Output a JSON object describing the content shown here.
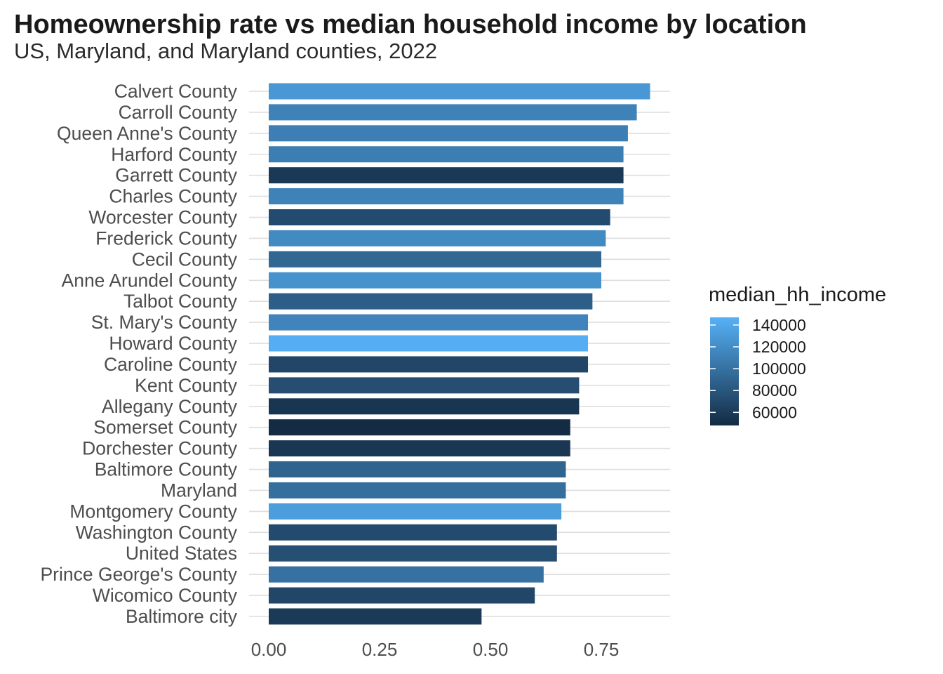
{
  "chart_data": {
    "type": "bar",
    "orientation": "horizontal",
    "title": "Homeownership rate vs median household income by location",
    "subtitle": "US, Maryland, and Maryland counties, 2022",
    "xlabel": "",
    "ylabel": "",
    "xlim": [
      0,
      0.9
    ],
    "x_ticks": [
      "0.00",
      "0.25",
      "0.50",
      "0.75"
    ],
    "x_tick_values": [
      0,
      0.25,
      0.5,
      0.75
    ],
    "grid": true,
    "legend_placement": "right",
    "categories": [
      "Calvert County",
      "Carroll County",
      "Queen Anne's County",
      "Harford County",
      "Garrett County",
      "Charles County",
      "Worcester County",
      "Frederick County",
      "Cecil County",
      "Anne Arundel County",
      "Talbot County",
      "St. Mary's County",
      "Howard County",
      "Caroline County",
      "Kent County",
      "Allegany County",
      "Somerset County",
      "Dorchester County",
      "Baltimore County",
      "Maryland",
      "Montgomery County",
      "Washington County",
      "United States",
      "Prince George's County",
      "Wicomico County",
      "Baltimore city"
    ],
    "values": [
      0.86,
      0.83,
      0.81,
      0.8,
      0.8,
      0.8,
      0.77,
      0.76,
      0.75,
      0.75,
      0.73,
      0.72,
      0.72,
      0.72,
      0.7,
      0.7,
      0.68,
      0.68,
      0.67,
      0.67,
      0.66,
      0.65,
      0.65,
      0.62,
      0.6,
      0.48
    ],
    "fill_values": [
      128000,
      112000,
      110000,
      109000,
      58000,
      112000,
      72000,
      118000,
      92000,
      124000,
      86000,
      114000,
      145000,
      68000,
      74000,
      56000,
      48000,
      57000,
      90000,
      98000,
      132000,
      72000,
      75000,
      100000,
      68000,
      59000
    ],
    "colorbar": {
      "title": "median_hh_income",
      "labels": [
        "140000",
        "120000",
        "100000",
        "80000",
        "60000"
      ],
      "values": [
        140000,
        120000,
        100000,
        80000,
        60000
      ],
      "range": [
        48000,
        147000
      ],
      "low_color": "#132b43",
      "high_color": "#56b1f7"
    }
  }
}
